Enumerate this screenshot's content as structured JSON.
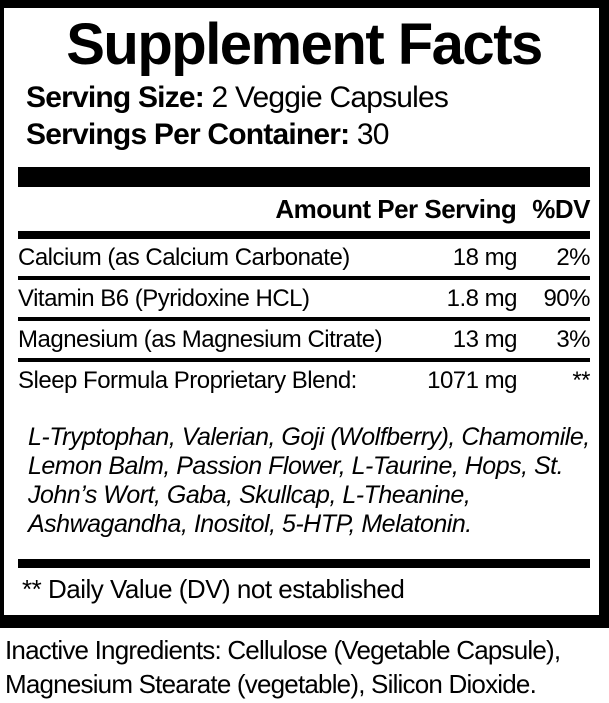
{
  "label": {
    "title": "Supplement Facts",
    "serving_size_label": "Serving Size:",
    "serving_size_value": "2 Veggie Capsules",
    "servings_per_container_label": "Servings Per Container:",
    "servings_per_container_value": "30",
    "header": {
      "amount_per_serving": "Amount Per Serving",
      "dv": "%DV"
    },
    "rows": [
      {
        "name": "Calcium (as Calcium Carbonate)",
        "amount": "18 mg",
        "dv": "2%"
      },
      {
        "name": "Vitamin B6 (Pyridoxine HCL)",
        "amount": "1.8 mg",
        "dv": "90%"
      },
      {
        "name": "Magnesium (as Magnesium Citrate)",
        "amount": "13 mg",
        "dv": "3%"
      },
      {
        "name": "Sleep Formula Proprietary Blend:",
        "amount": "1071 mg",
        "dv": "**"
      }
    ],
    "blend_ingredients_lines": [
      "L-Tryptophan, Valerian, Goji (Wolfberry), Chamomile,",
      "Lemon Balm, Passion Flower, L-Taurine, Hops, St.",
      "John’s Wort, Gaba, Skullcap, L-Theanine,",
      "Ashwagandha, Inositol, 5-HTP, Melatonin."
    ],
    "footnote": "** Daily Value (DV) not established",
    "colors": {
      "ink": "#000000",
      "background": "#ffffff"
    }
  },
  "inactive_ingredients_lines": [
    "Inactive Ingredients: Cellulose (Vegetable Capsule),",
    "Magnesium Stearate (vegetable), Silicon Dioxide."
  ]
}
